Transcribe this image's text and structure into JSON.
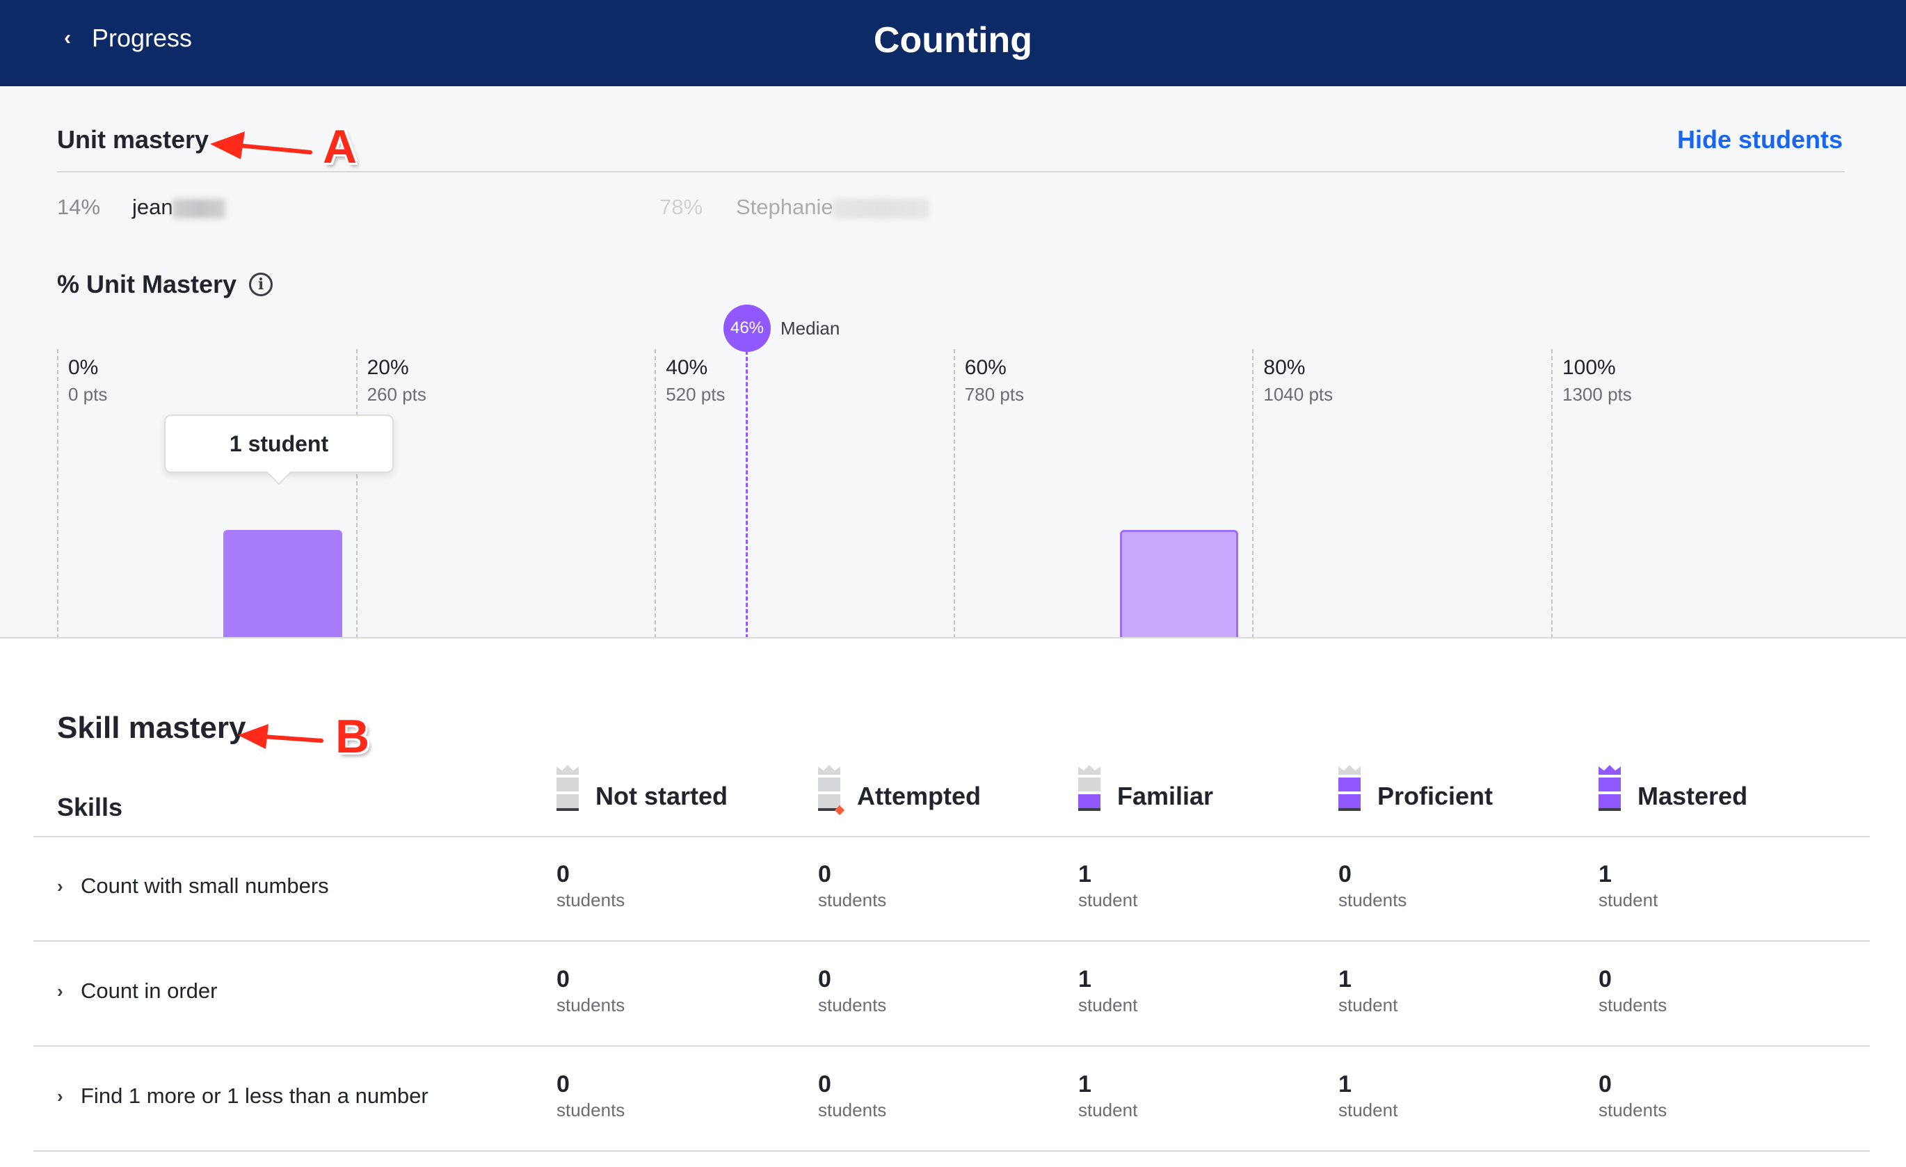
{
  "header": {
    "back_label": "Progress",
    "title": "Counting"
  },
  "unit_mastery": {
    "title": "Unit mastery",
    "hide_link": "Hide students",
    "students": [
      {
        "pct": "14%",
        "name": "jean"
      },
      {
        "pct": "78%",
        "name": "Stephanie"
      }
    ]
  },
  "chart": {
    "title": "% Unit Mastery",
    "median_value": "46%",
    "median_label": "Median",
    "tooltip": "1 student"
  },
  "chart_data": {
    "type": "bar",
    "title": "% Unit Mastery",
    "x_ticks": [
      {
        "pct": "0%",
        "pts": "0 pts"
      },
      {
        "pct": "20%",
        "pts": "260 pts"
      },
      {
        "pct": "40%",
        "pts": "520 pts"
      },
      {
        "pct": "60%",
        "pts": "780 pts"
      },
      {
        "pct": "80%",
        "pts": "1040 pts"
      },
      {
        "pct": "100%",
        "pts": "1300 pts"
      }
    ],
    "xlim": [
      0,
      100
    ],
    "bins": [
      {
        "from": 10,
        "to": 20,
        "students": 1
      },
      {
        "from": 70,
        "to": 80,
        "students": 1
      }
    ],
    "median": 46,
    "grid": true
  },
  "annotations": {
    "a": "A",
    "b": "B"
  },
  "skill_mastery": {
    "title": "Skill mastery",
    "skills_header": "Skills",
    "columns": [
      "Not started",
      "Attempted",
      "Familiar",
      "Proficient",
      "Mastered"
    ],
    "rows": [
      {
        "name": "Count with small numbers",
        "counts": [
          {
            "n": "0",
            "u": "students"
          },
          {
            "n": "0",
            "u": "students"
          },
          {
            "n": "1",
            "u": "student"
          },
          {
            "n": "0",
            "u": "students"
          },
          {
            "n": "1",
            "u": "student"
          }
        ]
      },
      {
        "name": "Count in order",
        "counts": [
          {
            "n": "0",
            "u": "students"
          },
          {
            "n": "0",
            "u": "students"
          },
          {
            "n": "1",
            "u": "student"
          },
          {
            "n": "1",
            "u": "student"
          },
          {
            "n": "0",
            "u": "students"
          }
        ]
      },
      {
        "name": "Find 1 more or 1 less than a number",
        "counts": [
          {
            "n": "0",
            "u": "students"
          },
          {
            "n": "0",
            "u": "students"
          },
          {
            "n": "1",
            "u": "student"
          },
          {
            "n": "1",
            "u": "student"
          },
          {
            "n": "0",
            "u": "students"
          }
        ]
      }
    ]
  },
  "colors": {
    "header_bg": "#0b2a66",
    "link": "#1865f2",
    "accent_purple": "#9059ff",
    "annotation_red": "#ff2a1a"
  }
}
